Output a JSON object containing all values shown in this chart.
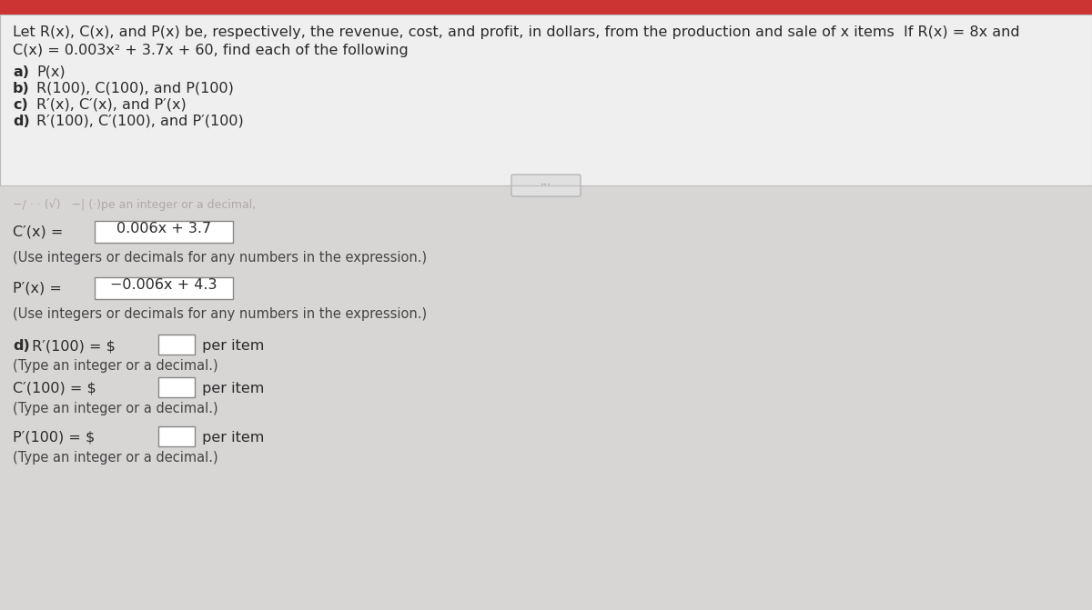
{
  "bg_color": "#c8c8c8",
  "top_section_bg": "#f0efef",
  "bottom_section_bg": "#dcdcdc",
  "title_line1": "Let R(x), C(x), and P(x) be, respectively, the revenue, cost, and profit, in dollars, from the production and sale of x items  If R(x) = 8x and",
  "title_line2": "C(x) = 0.003x² + 3.7x + 60, find each of the following",
  "items": [
    {
      "label": "a)",
      "text": "P(x)"
    },
    {
      "label": "b)",
      "text": "R(100), C(100), and P(100)"
    },
    {
      "label": "c)",
      "text": "R′(x), C′(x), and P′(x)"
    },
    {
      "label": "d)",
      "text": "R′(100), C′(100), and P′(100)"
    }
  ],
  "faded_text": "−/ · · (√)   −| (·)pe an integer or a decimal,",
  "c_prime_label": "C′(x) = ",
  "c_prime_box": "0.006x + 3.7",
  "c_prime_hint": "(Use integers or decimals for any numbers in the expression.)",
  "p_prime_label": "P′(x) = ",
  "p_prime_box": "−0.006x + 4.3",
  "p_prime_hint": "(Use integers or decimals for any numbers in the expression.)",
  "d_bold": "d)",
  "d_rest": " R′(100) = $",
  "d_suffix": " per item",
  "d_hint": "(Type an integer or a decimal.)",
  "c100_label": "C′(100) = $",
  "c100_suffix": " per item",
  "c100_hint": "(Type an integer or a decimal.)",
  "p100_label": "P′(100) = $",
  "p100_suffix": " per item",
  "p100_hint": "(Type an integer or a decimal.)",
  "font_size": 11.5,
  "font_hint": 10.5,
  "font_faded": 9,
  "text_color": "#2a2a2a",
  "hint_color": "#444444",
  "faded_color": "#b0a8a8",
  "box_color": "#ffffff",
  "box_edge": "#888888",
  "sep_color": "#bbbbbb",
  "top_border_color": "#cc3333"
}
